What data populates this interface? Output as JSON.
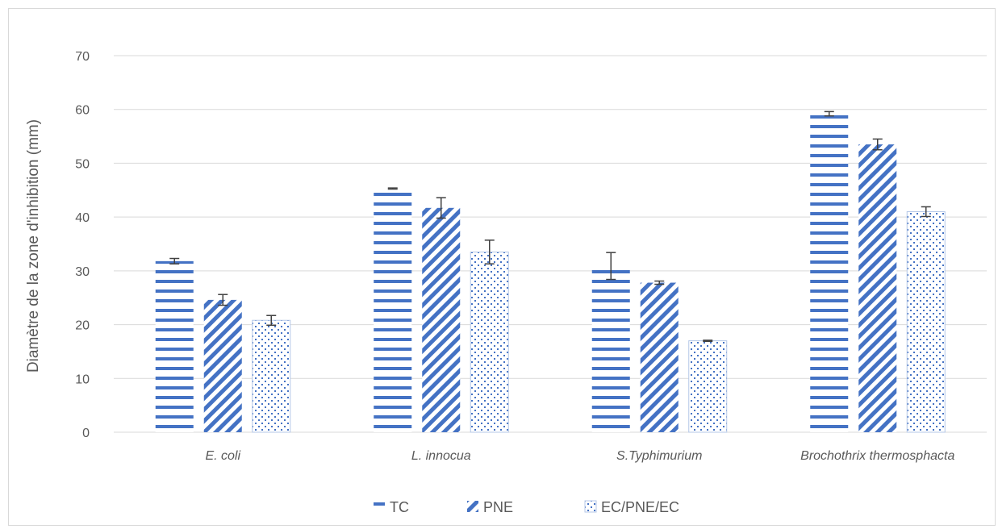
{
  "chart_data": {
    "type": "bar",
    "title": "",
    "xlabel": "",
    "ylabel": "Diamètre de la zone d'inhibition (mm)",
    "ylim": [
      0,
      70
    ],
    "yticks": [
      "0",
      "10",
      "20",
      "30",
      "40",
      "50",
      "60",
      "70"
    ],
    "grid": true,
    "legend_position": "bottom",
    "categories": [
      "E. coli",
      "L. innocua",
      "S.Typhimurium",
      "Brochothrix thermosphacta"
    ],
    "series": [
      {
        "name": "TC",
        "pattern": "horizontal-lines",
        "color": "#4472c4",
        "values": [
          31.8,
          45.3,
          30.9,
          59.2
        ],
        "errors": [
          0.5,
          0.1,
          2.5,
          0.4
        ]
      },
      {
        "name": "PNE",
        "pattern": "diagonal-stripes",
        "color": "#4472c4",
        "values": [
          24.6,
          41.7,
          27.8,
          53.5
        ],
        "errors": [
          1.0,
          1.9,
          0.3,
          1.0
        ]
      },
      {
        "name": "EC/PNE/EC",
        "pattern": "dots",
        "color": "#4472c4",
        "values": [
          20.8,
          33.5,
          17.0,
          41.0
        ],
        "errors": [
          0.9,
          2.2,
          0.1,
          0.9
        ]
      }
    ]
  }
}
